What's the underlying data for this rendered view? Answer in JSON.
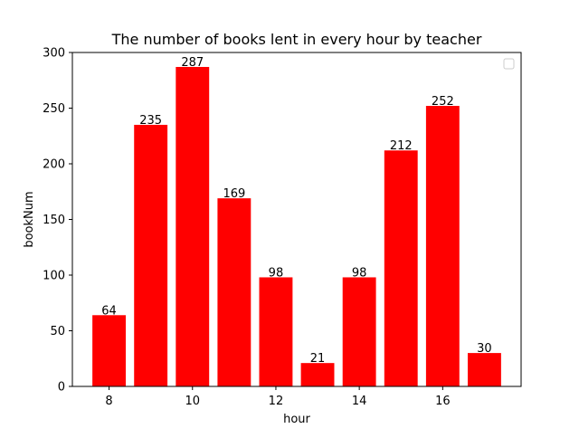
{
  "chart_data": {
    "type": "bar",
    "title": "The number of books lent in every hour by teacher",
    "xlabel": "hour",
    "ylabel": "bookNum",
    "x": [
      8,
      9,
      10,
      11,
      12,
      13,
      14,
      15,
      16,
      17
    ],
    "values": [
      64,
      235,
      287,
      169,
      98,
      21,
      98,
      212,
      252,
      30
    ],
    "data_labels": [
      "64",
      "235",
      "287",
      "169",
      "98",
      "21",
      "98",
      "212",
      "252",
      "30"
    ],
    "x_ticks": [
      8,
      10,
      12,
      14,
      16
    ],
    "x_tick_labels": [
      "8",
      "10",
      "12",
      "14",
      "16"
    ],
    "y_ticks": [
      0,
      50,
      100,
      150,
      200,
      250,
      300
    ],
    "y_tick_labels": [
      "0",
      "50",
      "100",
      "150",
      "200",
      "250",
      "300"
    ],
    "xlim": [
      7.12,
      17.88
    ],
    "ylim": [
      0,
      300
    ],
    "grid": false,
    "legend": {
      "placement": "top-right",
      "entries": []
    },
    "bar_color": "#ff0000"
  }
}
